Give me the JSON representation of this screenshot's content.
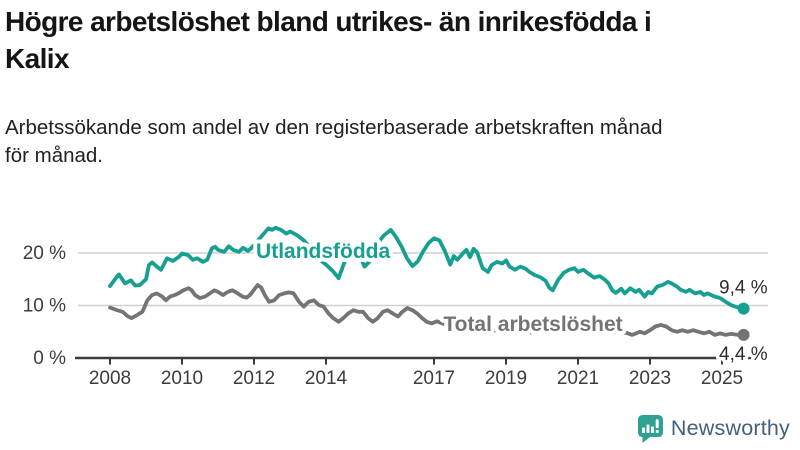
{
  "header": {
    "title": "Högre arbetslöshet bland utrikes- än inrikesfödda i\nKalix",
    "subtitle": "Arbetssökande som andel av den registerbaserade arbetskraften månad\nför månad."
  },
  "branding": {
    "logo_text": "Newsworthy",
    "logo_icon": "bar-chart-speech-bubble-icon",
    "icon_color": "#2ea192",
    "text_color": "#44607c"
  },
  "colors": {
    "background": "#ffffff",
    "grid": "#cfcfcf",
    "axis": "#3c3c3c",
    "axis_text": "#3d3d3d",
    "end_label": "#2e2e2e",
    "accent_teal": "#16a091",
    "accent_gray": "#747474"
  },
  "chart_data": {
    "type": "line",
    "title": "Högre arbetslöshet bland utrikes- än inrikesfödda i Kalix",
    "subtitle": "Arbetssökande som andel av den registerbaserade arbetskraften månad för månad.",
    "xlabel": "",
    "ylabel": "",
    "legend_position": "inline",
    "grid": "horizontal",
    "x_axis": {
      "ticks": [
        2008,
        2010,
        2012,
        2014,
        2017,
        2019,
        2021,
        2023,
        2025
      ],
      "range": [
        2007.0,
        2026.3
      ]
    },
    "y_axis": {
      "ticks": [
        0,
        10,
        20
      ],
      "gridlines": [
        10,
        20
      ],
      "unit": "%",
      "range": [
        0,
        29
      ]
    },
    "series": [
      {
        "name": "Utlandsfödda",
        "color": "#16a091",
        "end_label": "9,4 %",
        "end_value": 9.4,
        "label_pos": {
          "year": 2013.92,
          "value": 19.05
        },
        "end_label_offset": [
          24,
          -15
        ],
        "points": [
          [
            2008.0,
            13.7
          ],
          [
            2008.17,
            15.3
          ],
          [
            2008.25,
            15.9
          ],
          [
            2008.42,
            14.2
          ],
          [
            2008.58,
            14.8
          ],
          [
            2008.7,
            13.8
          ],
          [
            2008.83,
            13.9
          ],
          [
            2009.0,
            15.0
          ],
          [
            2009.08,
            17.7
          ],
          [
            2009.17,
            18.2
          ],
          [
            2009.3,
            17.4
          ],
          [
            2009.42,
            16.8
          ],
          [
            2009.58,
            19.0
          ],
          [
            2009.75,
            18.5
          ],
          [
            2009.92,
            19.3
          ],
          [
            2010.0,
            19.9
          ],
          [
            2010.17,
            19.6
          ],
          [
            2010.3,
            18.7
          ],
          [
            2010.42,
            19.0
          ],
          [
            2010.58,
            18.3
          ],
          [
            2010.7,
            18.7
          ],
          [
            2010.83,
            20.9
          ],
          [
            2010.92,
            21.2
          ],
          [
            2011.0,
            20.6
          ],
          [
            2011.17,
            20.2
          ],
          [
            2011.3,
            21.3
          ],
          [
            2011.42,
            20.6
          ],
          [
            2011.58,
            20.2
          ],
          [
            2011.7,
            21.0
          ],
          [
            2011.83,
            20.4
          ],
          [
            2011.92,
            20.9
          ],
          [
            2012.0,
            21.5
          ],
          [
            2012.2,
            23.1
          ],
          [
            2012.4,
            24.7
          ],
          [
            2012.5,
            24.4
          ],
          [
            2012.6,
            24.8
          ],
          [
            2012.75,
            24.4
          ],
          [
            2012.9,
            23.7
          ],
          [
            2013.0,
            24.1
          ],
          [
            2013.2,
            23.4
          ],
          [
            2013.4,
            22.3
          ],
          [
            2013.6,
            20.6
          ],
          [
            2013.8,
            18.9
          ],
          [
            2014.0,
            17.8
          ],
          [
            2014.2,
            16.5
          ],
          [
            2014.35,
            15.2
          ],
          [
            2014.5,
            18.0
          ],
          [
            2014.65,
            20.6
          ],
          [
            2014.8,
            21.2
          ],
          [
            2014.95,
            19.3
          ],
          [
            2015.07,
            17.4
          ],
          [
            2015.2,
            18.3
          ],
          [
            2015.4,
            21.5
          ],
          [
            2015.6,
            23.3
          ],
          [
            2015.8,
            24.4
          ],
          [
            2015.95,
            23.0
          ],
          [
            2016.1,
            21.2
          ],
          [
            2016.25,
            19.0
          ],
          [
            2016.4,
            17.5
          ],
          [
            2016.55,
            18.4
          ],
          [
            2016.7,
            20.3
          ],
          [
            2016.85,
            21.9
          ],
          [
            2017.0,
            22.8
          ],
          [
            2017.15,
            22.4
          ],
          [
            2017.3,
            20.4
          ],
          [
            2017.45,
            17.8
          ],
          [
            2017.55,
            19.4
          ],
          [
            2017.65,
            18.7
          ],
          [
            2017.8,
            19.9
          ],
          [
            2017.9,
            20.6
          ],
          [
            2018.0,
            19.2
          ],
          [
            2018.1,
            20.8
          ],
          [
            2018.2,
            20.1
          ],
          [
            2018.35,
            17.1
          ],
          [
            2018.5,
            16.4
          ],
          [
            2018.6,
            17.7
          ],
          [
            2018.75,
            18.3
          ],
          [
            2018.9,
            18.0
          ],
          [
            2019.0,
            18.6
          ],
          [
            2019.1,
            17.4
          ],
          [
            2019.25,
            16.8
          ],
          [
            2019.4,
            17.4
          ],
          [
            2019.55,
            17.0
          ],
          [
            2019.65,
            16.4
          ],
          [
            2019.8,
            15.8
          ],
          [
            2019.95,
            15.4
          ],
          [
            2020.1,
            14.7
          ],
          [
            2020.2,
            13.4
          ],
          [
            2020.3,
            12.9
          ],
          [
            2020.45,
            14.9
          ],
          [
            2020.6,
            16.2
          ],
          [
            2020.75,
            16.8
          ],
          [
            2020.9,
            17.1
          ],
          [
            2021.0,
            16.4
          ],
          [
            2021.15,
            16.8
          ],
          [
            2021.3,
            16.0
          ],
          [
            2021.45,
            15.3
          ],
          [
            2021.6,
            15.6
          ],
          [
            2021.75,
            14.9
          ],
          [
            2021.85,
            14.2
          ],
          [
            2021.95,
            12.9
          ],
          [
            2022.05,
            12.4
          ],
          [
            2022.2,
            13.2
          ],
          [
            2022.3,
            12.3
          ],
          [
            2022.45,
            13.3
          ],
          [
            2022.6,
            12.6
          ],
          [
            2022.7,
            13.0
          ],
          [
            2022.85,
            11.7
          ],
          [
            2022.95,
            12.6
          ],
          [
            2023.05,
            12.3
          ],
          [
            2023.2,
            13.6
          ],
          [
            2023.35,
            13.9
          ],
          [
            2023.5,
            14.5
          ],
          [
            2023.6,
            14.2
          ],
          [
            2023.75,
            13.6
          ],
          [
            2023.85,
            13.0
          ],
          [
            2024.0,
            12.6
          ],
          [
            2024.1,
            13.0
          ],
          [
            2024.25,
            12.3
          ],
          [
            2024.4,
            12.6
          ],
          [
            2024.5,
            12.0
          ],
          [
            2024.6,
            12.3
          ],
          [
            2024.8,
            11.7
          ],
          [
            2024.95,
            11.4
          ],
          [
            2025.1,
            10.7
          ],
          [
            2025.25,
            10.1
          ],
          [
            2025.45,
            9.6
          ],
          [
            2025.6,
            9.4
          ]
        ]
      },
      {
        "name": "Total arbetslöshet",
        "color": "#747474",
        "end_label": "4,4 %",
        "end_value": 4.4,
        "label_pos": {
          "year": 2019.75,
          "value": 5.15
        },
        "end_label_offset": [
          24,
          25
        ],
        "points": [
          [
            2008.0,
            9.6
          ],
          [
            2008.2,
            9.1
          ],
          [
            2008.35,
            8.8
          ],
          [
            2008.5,
            7.9
          ],
          [
            2008.6,
            7.6
          ],
          [
            2008.76,
            8.2
          ],
          [
            2008.9,
            8.8
          ],
          [
            2009.04,
            11.0
          ],
          [
            2009.17,
            12.0
          ],
          [
            2009.3,
            12.3
          ],
          [
            2009.45,
            11.7
          ],
          [
            2009.55,
            11.0
          ],
          [
            2009.67,
            11.7
          ],
          [
            2009.8,
            12.0
          ],
          [
            2009.9,
            12.3
          ],
          [
            2010.04,
            12.9
          ],
          [
            2010.18,
            13.3
          ],
          [
            2010.27,
            12.9
          ],
          [
            2010.36,
            12.0
          ],
          [
            2010.5,
            11.4
          ],
          [
            2010.64,
            11.7
          ],
          [
            2010.77,
            12.3
          ],
          [
            2010.9,
            12.9
          ],
          [
            2011.0,
            12.6
          ],
          [
            2011.14,
            12.0
          ],
          [
            2011.27,
            12.6
          ],
          [
            2011.4,
            12.9
          ],
          [
            2011.55,
            12.3
          ],
          [
            2011.68,
            11.7
          ],
          [
            2011.8,
            11.5
          ],
          [
            2011.9,
            12.1
          ],
          [
            2012.0,
            13.0
          ],
          [
            2012.1,
            13.9
          ],
          [
            2012.2,
            13.4
          ],
          [
            2012.3,
            12.0
          ],
          [
            2012.42,
            10.7
          ],
          [
            2012.56,
            11.0
          ],
          [
            2012.7,
            12.0
          ],
          [
            2012.84,
            12.3
          ],
          [
            2012.97,
            12.5
          ],
          [
            2013.1,
            12.3
          ],
          [
            2013.25,
            10.7
          ],
          [
            2013.38,
            9.8
          ],
          [
            2013.52,
            10.7
          ],
          [
            2013.66,
            11.0
          ],
          [
            2013.8,
            10.1
          ],
          [
            2013.93,
            9.8
          ],
          [
            2014.07,
            8.5
          ],
          [
            2014.2,
            7.6
          ],
          [
            2014.35,
            6.9
          ],
          [
            2014.48,
            7.6
          ],
          [
            2014.62,
            8.5
          ],
          [
            2014.76,
            9.1
          ],
          [
            2014.9,
            8.8
          ],
          [
            2015.03,
            8.8
          ],
          [
            2015.17,
            7.6
          ],
          [
            2015.3,
            6.9
          ],
          [
            2015.44,
            7.6
          ],
          [
            2015.58,
            8.8
          ],
          [
            2015.71,
            9.1
          ],
          [
            2015.85,
            8.5
          ],
          [
            2016.0,
            7.9
          ],
          [
            2016.12,
            8.8
          ],
          [
            2016.26,
            9.5
          ],
          [
            2016.4,
            9.1
          ],
          [
            2016.53,
            8.5
          ],
          [
            2016.67,
            7.6
          ],
          [
            2016.8,
            6.9
          ],
          [
            2016.94,
            6.6
          ],
          [
            2017.08,
            7.0
          ],
          [
            2017.3,
            6.4
          ],
          [
            2017.6,
            5.8
          ],
          [
            2017.9,
            5.4
          ],
          [
            2018.2,
            5.6
          ],
          [
            2018.5,
            5.1
          ],
          [
            2018.8,
            5.3
          ],
          [
            2019.1,
            5.0
          ],
          [
            2019.4,
            4.8
          ],
          [
            2019.7,
            4.9
          ],
          [
            2020.0,
            5.3
          ],
          [
            2020.3,
            6.6
          ],
          [
            2020.5,
            7.0
          ],
          [
            2020.8,
            6.7
          ],
          [
            2021.1,
            6.2
          ],
          [
            2021.4,
            5.8
          ],
          [
            2021.7,
            5.4
          ],
          [
            2021.9,
            5.1
          ],
          [
            2022.1,
            4.9
          ],
          [
            2022.35,
            4.8
          ],
          [
            2022.5,
            4.4
          ],
          [
            2022.62,
            4.7
          ],
          [
            2022.72,
            5.0
          ],
          [
            2022.85,
            4.7
          ],
          [
            2023.0,
            5.3
          ],
          [
            2023.15,
            6.0
          ],
          [
            2023.3,
            6.3
          ],
          [
            2023.45,
            6.0
          ],
          [
            2023.6,
            5.3
          ],
          [
            2023.75,
            5.0
          ],
          [
            2023.9,
            5.3
          ],
          [
            2024.05,
            5.0
          ],
          [
            2024.2,
            5.3
          ],
          [
            2024.35,
            5.0
          ],
          [
            2024.5,
            4.7
          ],
          [
            2024.65,
            5.0
          ],
          [
            2024.8,
            4.4
          ],
          [
            2024.95,
            4.7
          ],
          [
            2025.1,
            4.4
          ],
          [
            2025.25,
            4.6
          ],
          [
            2025.45,
            4.4
          ],
          [
            2025.6,
            4.4
          ]
        ]
      }
    ]
  }
}
